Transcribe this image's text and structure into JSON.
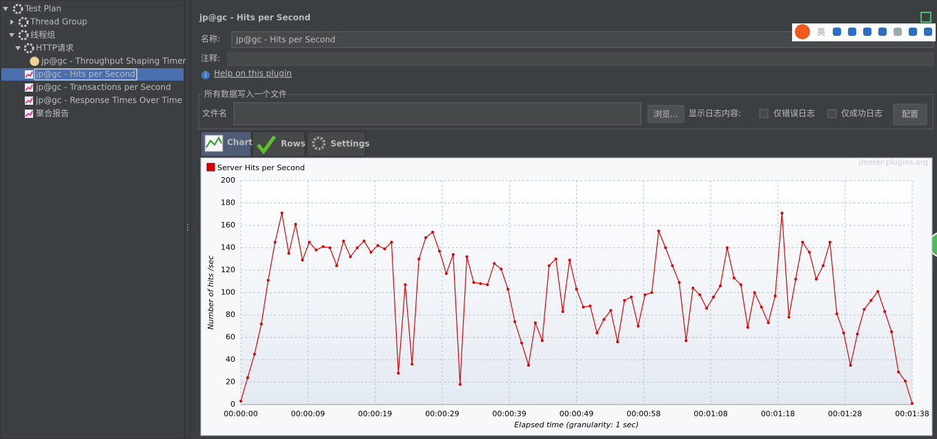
{
  "tree": {
    "label": "Test Plan",
    "children": [
      {
        "label": "Thread Group"
      },
      {
        "label": "线程组",
        "children": [
          {
            "label": "HTTP请求",
            "children": [
              {
                "label": "jp@gc - Throughput Shaping Timer"
              }
            ]
          },
          {
            "label": "jp@gc - Hits per Second"
          },
          {
            "label": "jp@gc - Transactions per Second"
          },
          {
            "label": "jp@gc - Response Times Over Time"
          },
          {
            "label": "聚合报告"
          }
        ]
      }
    ]
  },
  "panel": {
    "title": "jp@gc - Hits per Second",
    "name_label": "名称:",
    "name_value": "jp@gc - Hits per Second",
    "comment_label": "注释:",
    "help_link": "Help on this plugin",
    "file_group": "所有数据写入一个文件",
    "file_label": "文件名",
    "browse_button": "浏览...",
    "log_label": "显示日志内容:",
    "errors_only": "仅错误日志",
    "success_only": "仅成功日志",
    "config_button": "配置",
    "tabs": [
      "Chart",
      "Rows",
      "Settings"
    ],
    "watermark": "jmeter-plugins.org"
  },
  "ime": {
    "lang": "英"
  },
  "chart_data": {
    "type": "line",
    "x_label": "Elapsed time (granularity: 1 sec)",
    "y_label": "Number of hits /sec",
    "x": [
      0,
      1,
      2,
      3,
      4,
      5,
      6,
      7,
      8,
      9,
      10,
      11,
      12,
      13,
      14,
      15,
      16,
      17,
      18,
      19,
      20,
      21,
      22,
      23,
      24,
      25,
      26,
      27,
      28,
      29,
      30,
      31,
      32,
      33,
      34,
      35,
      36,
      37,
      38,
      39,
      40,
      41,
      42,
      43,
      44,
      45,
      46,
      47,
      48,
      49,
      50,
      51,
      52,
      53,
      54,
      55,
      56,
      57,
      58,
      59,
      60,
      61,
      62,
      63,
      64,
      65,
      66,
      67,
      68,
      69,
      70,
      71,
      72,
      73,
      74,
      75,
      76,
      77,
      78,
      79,
      80,
      81,
      82,
      83,
      84,
      85,
      86,
      87,
      88,
      89,
      90,
      91,
      92,
      93,
      94,
      95,
      96,
      97,
      98
    ],
    "series": [
      {
        "name": "Server Hits per Second",
        "color": "#dd0000",
        "values": [
          3,
          24,
          45,
          72,
          111,
          145,
          171,
          135,
          161,
          129,
          145,
          138,
          141,
          140,
          124,
          146,
          132,
          140,
          146,
          136,
          142,
          139,
          145,
          28,
          107,
          36,
          130,
          149,
          154,
          137,
          117,
          134,
          18,
          132,
          109,
          108,
          107,
          126,
          121,
          103,
          74,
          55,
          35,
          73,
          57,
          124,
          130,
          83,
          129,
          103,
          87,
          88,
          64,
          76,
          84,
          56,
          93,
          96,
          70,
          98,
          100,
          155,
          140,
          124,
          109,
          57,
          104,
          98,
          86,
          96,
          106,
          140,
          113,
          107,
          69,
          100,
          87,
          73,
          97,
          171,
          78,
          112,
          145,
          136,
          112,
          124,
          145,
          81,
          64,
          35,
          63,
          85,
          93,
          101,
          83,
          65,
          29,
          21,
          1
        ]
      }
    ],
    "xlim": [
      0,
      98
    ],
    "ylim": [
      0,
      200
    ],
    "xticks": [
      {
        "value": 0,
        "label": "00:00:00"
      },
      {
        "value": 9.8,
        "label": "00:00:09"
      },
      {
        "value": 19.6,
        "label": "00:00:19"
      },
      {
        "value": 29.4,
        "label": "00:00:29"
      },
      {
        "value": 39.2,
        "label": "00:00:39"
      },
      {
        "value": 49,
        "label": "00:00:49"
      },
      {
        "value": 58.8,
        "label": "00:00:58"
      },
      {
        "value": 68.6,
        "label": "00:01:08"
      },
      {
        "value": 78.4,
        "label": "00:01:18"
      },
      {
        "value": 88.2,
        "label": "00:01:28"
      },
      {
        "value": 98,
        "label": "00:01:38"
      }
    ],
    "yticks": [
      0,
      20,
      40,
      60,
      80,
      100,
      120,
      140,
      160,
      180,
      200
    ],
    "grid": true,
    "legend": "top-left"
  }
}
